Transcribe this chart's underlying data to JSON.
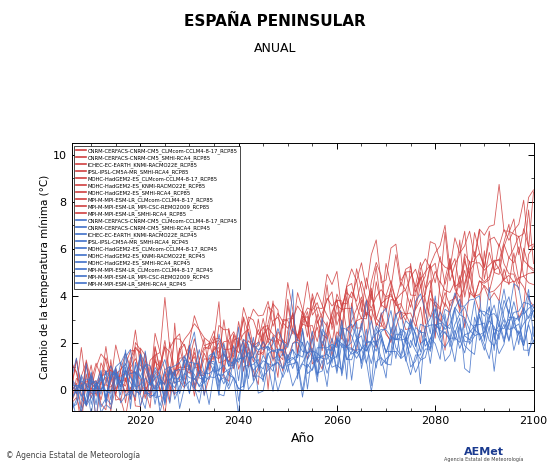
{
  "title": "ESPAÑA PENINSULAR",
  "subtitle": "ANUAL",
  "xlabel": "Año",
  "ylabel": "Cambio de la temperatura mínima (°C)",
  "xlim": [
    2006,
    2100
  ],
  "ylim": [
    -0.9,
    10.5
  ],
  "yticks": [
    0,
    2,
    4,
    6,
    8,
    10
  ],
  "xticks": [
    2020,
    2040,
    2060,
    2080,
    2100
  ],
  "rcp85_color": "#d04040",
  "rcp45_color": "#4070c8",
  "rcp85_color_light": "#e07070",
  "rcp45_color_light": "#70a0e0",
  "legend_rcp85_entries": [
    "CNRM-CERFACS-CNRM-CM5_CLMcom-CCLM4-8-17_RCP85",
    "CNRM-CERFACS-CNRM-CM5_SMHI-RCA4_RCP85",
    "ICHEC-EC-EARTH_KNMI-RACMO22E_RCP85",
    "IPSL-IPSL-CM5A-MR_SMHI-RCA4_RCP85",
    "MOHC-HadGEM2-ES_CLMcom-CCLM4-8-17_RCP85",
    "MOHC-HadGEM2-ES_KNMI-RACMO22E_RCP85",
    "MOHC-HadGEM2-ES_SMHI-RCA4_RCP85",
    "MPI-M-MPI-ESM-LR_CLMcom-CCLM4-8-17_RCP85",
    "MPI-M-MPI-ESM-LR_MPI-CSC-REMO2009_RCP85",
    "MPI-M-MPI-ESM-LR_SMHI-RCA4_RCP85"
  ],
  "legend_rcp45_entries": [
    "CNRM-CERFACS-CNRM-CM5_CLMcom-CCLM4-8-17_RCP45",
    "CNRM-CERFACS-CNRM-CM5_SMHI-RCA4_RCP45",
    "ICHEC-EC-EARTH_KNMI-RACMO22E_RCP45",
    "IPSL-IPSL-CM5A-MR_SMHI-RCA4_RCP45",
    "MOHC-HadGEM2-ES_CLMcom-CCLM4-8-17_RCP45",
    "MOHC-HadGEM2-ES_KNMI-RACMO22E_RCP45",
    "MOHC-HadGEM2-ES_SMHI-RCA4_RCP45",
    "MPI-M-MPI-ESM-LR_CLMcom-CCLM4-8-17_RCP45",
    "MPI-M-MPI-ESM-LR_MPI-CSC-REMO2009_RCP45",
    "MPI-M-MPI-ESM-LR_SMHI-RCA4_RCP45"
  ],
  "background_color": "#ffffff",
  "footer_text": "© Agencia Estatal de Meteorología",
  "rcp85_trends": [
    5.5,
    6.8,
    5.2,
    5.0,
    7.5,
    6.2,
    6.0,
    5.8,
    5.3,
    4.8
  ],
  "rcp45_trends": [
    3.2,
    3.5,
    2.8,
    2.5,
    3.8,
    3.3,
    3.0,
    2.9,
    2.6,
    2.4
  ]
}
